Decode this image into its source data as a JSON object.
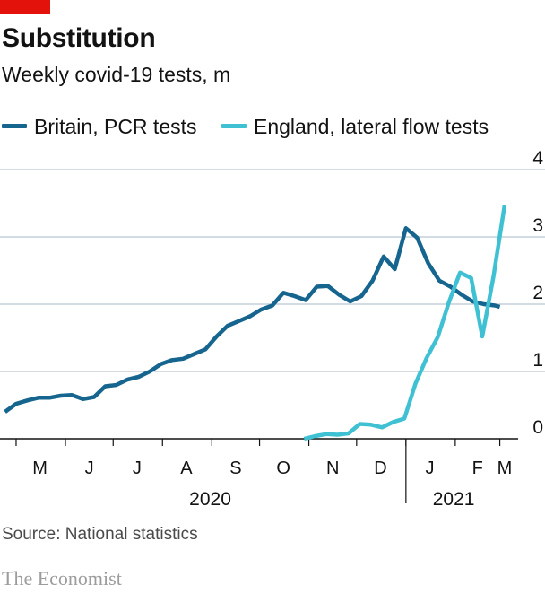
{
  "header": {
    "title": "Substitution",
    "subtitle": "Weekly covid-19 tests, m"
  },
  "footer": {
    "source": "Source: National statistics",
    "brand": "The Economist"
  },
  "colors": {
    "accent_tag": "#e3120b",
    "pcr": "#16658f",
    "lateral_flow": "#3fc1d3",
    "grid": "#b7c6d1",
    "axis": "#121212"
  },
  "chart_data": {
    "type": "line",
    "title": "Substitution",
    "subtitle": "Weekly covid-19 tests, m",
    "ylim": [
      0,
      4
    ],
    "yticks": [
      "0",
      "1",
      "2",
      "3",
      "4"
    ],
    "y_axis_side": "right",
    "grid": true,
    "legend_position": "top",
    "xlim": [
      "2020-04-22",
      "2021-03-08"
    ],
    "month_labels": [
      {
        "label": "M",
        "date": "2020-05-16"
      },
      {
        "label": "J",
        "date": "2020-06-16"
      },
      {
        "label": "J",
        "date": "2020-07-16"
      },
      {
        "label": "A",
        "date": "2020-08-16"
      },
      {
        "label": "S",
        "date": "2020-09-16"
      },
      {
        "label": "O",
        "date": "2020-10-16"
      },
      {
        "label": "N",
        "date": "2020-11-16"
      },
      {
        "label": "D",
        "date": "2020-12-16"
      },
      {
        "label": "J",
        "date": "2021-01-16"
      },
      {
        "label": "F",
        "date": "2021-02-15"
      },
      {
        "label": "M",
        "date": "2021-03-04"
      }
    ],
    "year_labels": [
      {
        "label": "2020",
        "date": "2020-08-31"
      },
      {
        "label": "2021",
        "date": "2021-01-31"
      }
    ],
    "series": [
      {
        "name": "Britain, PCR tests",
        "color": "#16658f",
        "points": [
          [
            "2020-04-24",
            0.4
          ],
          [
            "2020-05-01",
            0.52
          ],
          [
            "2020-05-08",
            0.57
          ],
          [
            "2020-05-15",
            0.61
          ],
          [
            "2020-05-22",
            0.61
          ],
          [
            "2020-05-29",
            0.64
          ],
          [
            "2020-06-05",
            0.65
          ],
          [
            "2020-06-12",
            0.59
          ],
          [
            "2020-06-19",
            0.62
          ],
          [
            "2020-06-26",
            0.78
          ],
          [
            "2020-07-03",
            0.8
          ],
          [
            "2020-07-10",
            0.88
          ],
          [
            "2020-07-17",
            0.92
          ],
          [
            "2020-07-24",
            1.0
          ],
          [
            "2020-07-31",
            1.11
          ],
          [
            "2020-08-07",
            1.17
          ],
          [
            "2020-08-14",
            1.19
          ],
          [
            "2020-08-21",
            1.26
          ],
          [
            "2020-08-28",
            1.33
          ],
          [
            "2020-09-04",
            1.52
          ],
          [
            "2020-09-11",
            1.68
          ],
          [
            "2020-09-18",
            1.75
          ],
          [
            "2020-09-25",
            1.82
          ],
          [
            "2020-10-02",
            1.92
          ],
          [
            "2020-10-09",
            1.98
          ],
          [
            "2020-10-16",
            2.17
          ],
          [
            "2020-10-23",
            2.12
          ],
          [
            "2020-10-30",
            2.06
          ],
          [
            "2020-11-06",
            2.26
          ],
          [
            "2020-11-13",
            2.27
          ],
          [
            "2020-11-20",
            2.14
          ],
          [
            "2020-11-27",
            2.04
          ],
          [
            "2020-12-04",
            2.12
          ],
          [
            "2020-12-11",
            2.35
          ],
          [
            "2020-12-18",
            2.71
          ],
          [
            "2020-12-25",
            2.52
          ],
          [
            "2021-01-01",
            3.13
          ],
          [
            "2021-01-08",
            2.99
          ],
          [
            "2021-01-15",
            2.61
          ],
          [
            "2021-01-22",
            2.35
          ],
          [
            "2021-01-29",
            2.26
          ],
          [
            "2021-02-05",
            2.14
          ],
          [
            "2021-02-12",
            2.04
          ],
          [
            "2021-02-19",
            2.0
          ],
          [
            "2021-02-26",
            1.98
          ],
          [
            "2021-03-01",
            1.96
          ]
        ]
      },
      {
        "name": "England, lateral flow tests",
        "color": "#3fc1d3",
        "points": [
          [
            "2020-10-29",
            0.0
          ],
          [
            "2020-11-05",
            0.04
          ],
          [
            "2020-11-12",
            0.07
          ],
          [
            "2020-11-19",
            0.06
          ],
          [
            "2020-11-26",
            0.08
          ],
          [
            "2020-12-03",
            0.22
          ],
          [
            "2020-12-10",
            0.21
          ],
          [
            "2020-12-17",
            0.17
          ],
          [
            "2020-12-24",
            0.25
          ],
          [
            "2020-12-31",
            0.3
          ],
          [
            "2021-01-07",
            0.82
          ],
          [
            "2021-01-14",
            1.2
          ],
          [
            "2021-01-21",
            1.51
          ],
          [
            "2021-01-28",
            2.03
          ],
          [
            "2021-02-04",
            2.47
          ],
          [
            "2021-02-11",
            2.39
          ],
          [
            "2021-02-18",
            1.52
          ],
          [
            "2021-02-25",
            2.41
          ],
          [
            "2021-03-04",
            3.47
          ]
        ]
      }
    ]
  }
}
